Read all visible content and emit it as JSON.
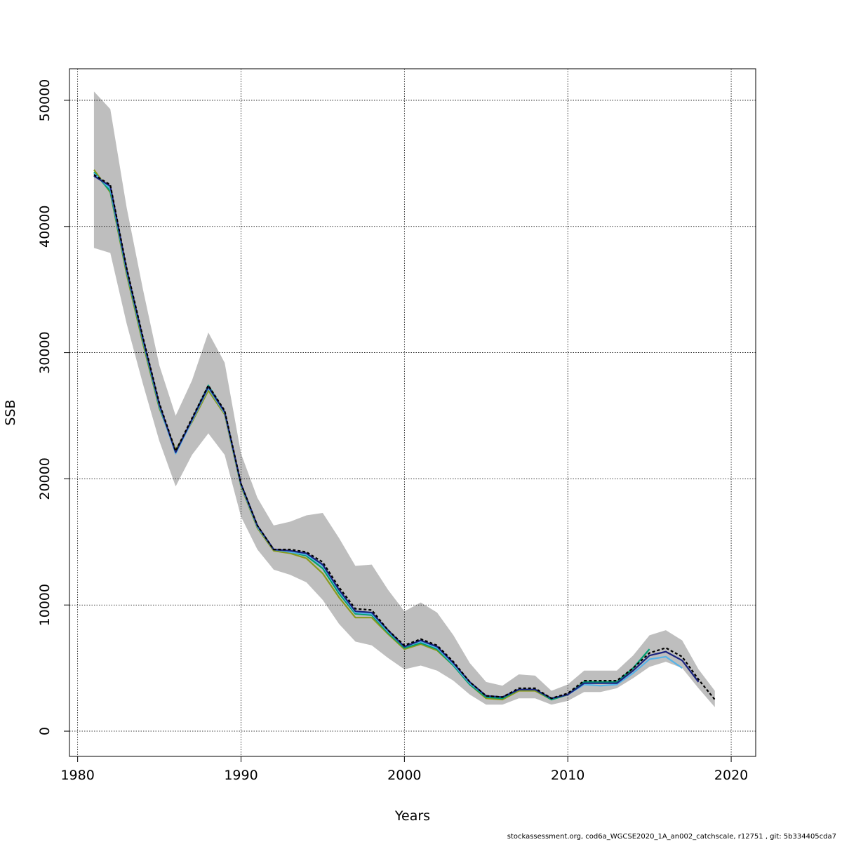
{
  "footer_text": "stockassessment.org, cod6a_WGCSE2020_1A_an002_catchscale, r12751 , git: 5b334405cda7",
  "chart_data": {
    "type": "line",
    "title": "",
    "xlabel": "Years",
    "ylabel": "SSB",
    "xlim": [
      1979.5,
      2021.5
    ],
    "ylim": [
      -2000,
      52500
    ],
    "x_ticks": [
      1980,
      1990,
      2000,
      2010,
      2020
    ],
    "y_ticks": [
      0,
      10000,
      20000,
      30000,
      40000,
      50000
    ],
    "grid": true,
    "confidence_band": {
      "color": "#bebebe",
      "x": [
        1981,
        1982,
        1983,
        1984,
        1985,
        1986,
        1987,
        1988,
        1989,
        1990,
        1991,
        1992,
        1993,
        1994,
        1995,
        1996,
        1997,
        1998,
        1999,
        2000,
        2001,
        2002,
        2003,
        2004,
        2005,
        2006,
        2007,
        2008,
        2009,
        2010,
        2011,
        2012,
        2013,
        2014,
        2015,
        2016,
        2017,
        2018,
        2019
      ],
      "upper": [
        50700,
        49300,
        41500,
        35000,
        29000,
        25000,
        27800,
        31600,
        29200,
        22000,
        18500,
        16300,
        16600,
        17100,
        17300,
        15300,
        13100,
        13200,
        11200,
        9500,
        10200,
        9400,
        7600,
        5400,
        3900,
        3600,
        4500,
        4400,
        3200,
        3700,
        4800,
        4800,
        4800,
        6000,
        7600,
        8000,
        7200,
        4900,
        3200
      ],
      "lower": [
        38300,
        37900,
        32300,
        27500,
        23000,
        19400,
        21900,
        23600,
        21900,
        17000,
        14400,
        12800,
        12400,
        11800,
        10400,
        8500,
        7100,
        6800,
        5800,
        4900,
        5200,
        4800,
        4000,
        2900,
        2100,
        2100,
        2600,
        2600,
        2100,
        2400,
        3100,
        3100,
        3400,
        4200,
        5100,
        5500,
        5000,
        3400,
        1900
      ]
    },
    "x": [
      1981,
      1982,
      1983,
      1984,
      1985,
      1986,
      1987,
      1988,
      1989,
      1990,
      1991,
      1992,
      1993,
      1994,
      1995,
      1996,
      1997,
      1998,
      1999,
      2000,
      2001,
      2002,
      2003,
      2004,
      2005,
      2006,
      2007,
      2008,
      2009,
      2010,
      2011,
      2012,
      2013,
      2014,
      2015,
      2016,
      2017,
      2018,
      2019
    ],
    "series": [
      {
        "color": "#000000",
        "style": "dashed",
        "values": [
          44100,
          43300,
          36700,
          31200,
          26000,
          22200,
          24800,
          27400,
          25400,
          19600,
          16300,
          14400,
          14400,
          14200,
          13400,
          11400,
          9700,
          9600,
          8000,
          6800,
          7300,
          6800,
          5500,
          3900,
          2800,
          2700,
          3400,
          3400,
          2600,
          3000,
          4000,
          4000,
          4000,
          5000,
          6200,
          6600,
          5900,
          4100,
          2500
        ]
      },
      {
        "color": "#1a237e",
        "style": "solid",
        "x": [
          1981,
          1982,
          1983,
          1984,
          1985,
          1986,
          1987,
          1988,
          1989,
          1990,
          1991,
          1992,
          1993,
          1994,
          1995,
          1996,
          1997,
          1998,
          1999,
          2000,
          2001,
          2002,
          2003,
          2004,
          2005,
          2006,
          2007,
          2008,
          2009,
          2010,
          2011,
          2012,
          2013,
          2014,
          2015,
          2016,
          2017,
          2018
        ],
        "values": [
          44000,
          43200,
          36600,
          31100,
          25900,
          22100,
          24700,
          27300,
          25300,
          19600,
          16300,
          14400,
          14300,
          14100,
          13200,
          11200,
          9500,
          9400,
          8000,
          6700,
          7200,
          6700,
          5400,
          3900,
          2800,
          2700,
          3300,
          3300,
          2600,
          2900,
          3800,
          3800,
          3800,
          4800,
          6000,
          6300,
          5600,
          3900
        ]
      },
      {
        "color": "#56b4e9",
        "style": "solid",
        "x": [
          1981,
          1982,
          1983,
          1984,
          1985,
          1986,
          1987,
          1988,
          1989,
          1990,
          1991,
          1992,
          1993,
          1994,
          1995,
          1996,
          1997,
          1998,
          1999,
          2000,
          2001,
          2002,
          2003,
          2004,
          2005,
          2006,
          2007,
          2008,
          2009,
          2010,
          2011,
          2012,
          2013,
          2014,
          2015,
          2016,
          2017
        ],
        "values": [
          44200,
          43000,
          36500,
          31000,
          25800,
          22000,
          24600,
          27200,
          25200,
          19500,
          16200,
          14400,
          14200,
          14000,
          13100,
          11100,
          9400,
          9300,
          7900,
          6700,
          7100,
          6600,
          5300,
          3800,
          2800,
          2700,
          3300,
          3300,
          2600,
          2900,
          3700,
          3600,
          3700,
          4600,
          5700,
          5900,
          5000
        ]
      },
      {
        "color": "#009e73",
        "style": "solid",
        "x": [
          1981,
          1982,
          1983,
          1984,
          1985,
          1986,
          1987,
          1988,
          1989,
          1990,
          1991,
          1992,
          1993,
          1994,
          1995,
          1996,
          1997,
          1998,
          1999,
          2000,
          2001,
          2002,
          2003,
          2004,
          2005,
          2006,
          2007,
          2008,
          2009,
          2010,
          2011,
          2012,
          2013,
          2014,
          2015
        ],
        "values": [
          44300,
          42800,
          36400,
          30900,
          25700,
          22100,
          24700,
          27400,
          25300,
          19500,
          16200,
          14400,
          14200,
          13900,
          12900,
          10900,
          9300,
          9200,
          7800,
          6600,
          7000,
          6500,
          5200,
          3700,
          2700,
          2600,
          3300,
          3300,
          2500,
          2900,
          3900,
          3900,
          3900,
          5000,
          6500
        ]
      },
      {
        "color": "#8a9a1b",
        "style": "solid",
        "x": [
          1981,
          1982,
          1983,
          1984,
          1985,
          1986,
          1987,
          1988,
          1989,
          1990,
          1991,
          1992,
          1993,
          1994,
          1995,
          1996,
          1997,
          1998,
          1999,
          2000,
          2001,
          2002,
          2003,
          2004,
          2005,
          2006,
          2007,
          2008,
          2009,
          2010,
          2011,
          2012,
          2013,
          2014
        ],
        "values": [
          44500,
          42700,
          36200,
          30700,
          25600,
          22300,
          24500,
          27000,
          25100,
          19400,
          16100,
          14300,
          14100,
          13700,
          12500,
          10600,
          9000,
          9000,
          7700,
          6500,
          6900,
          6400,
          5200,
          3700,
          2600,
          2500,
          3200,
          3200,
          2500,
          2900,
          3900,
          3900,
          3900,
          4900
        ]
      }
    ]
  }
}
